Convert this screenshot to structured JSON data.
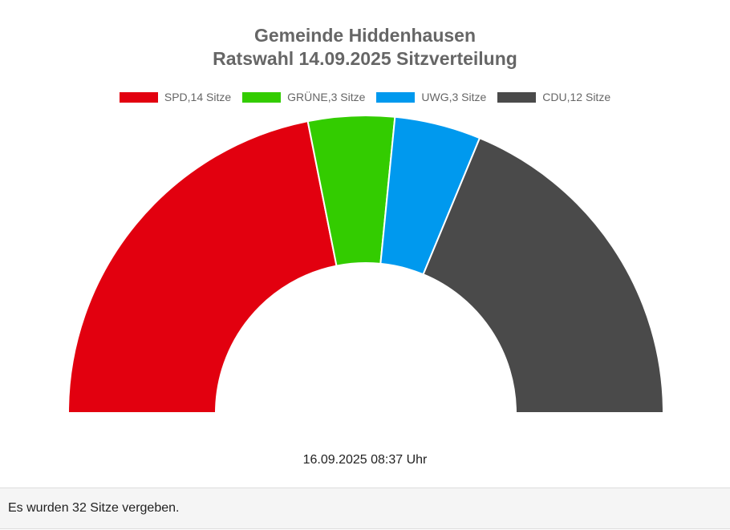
{
  "chart_data": {
    "type": "pie",
    "variant": "semicircle",
    "title_lines": [
      "Gemeinde Hiddenhausen",
      "Ratswahl 14.09.2025 Sitzverteilung"
    ],
    "series": [
      {
        "name": "SPD",
        "legend_label": "SPD,14 Sitze",
        "value": 14,
        "color": "#e2000f"
      },
      {
        "name": "GRÜNE",
        "legend_label": "GRÜNE,3 Sitze",
        "value": 3,
        "color": "#33cc00"
      },
      {
        "name": "UWG",
        "legend_label": "UWG,3 Sitze",
        "value": 3,
        "color": "#0099ee"
      },
      {
        "name": "CDU",
        "legend_label": "CDU,12 Sitze",
        "value": 12,
        "color": "#4a4a4a"
      }
    ],
    "legend_position": "top"
  },
  "timestamp": "16.09.2025 08:37 Uhr",
  "footer_text": "Es wurden 32 Sitze vergeben."
}
